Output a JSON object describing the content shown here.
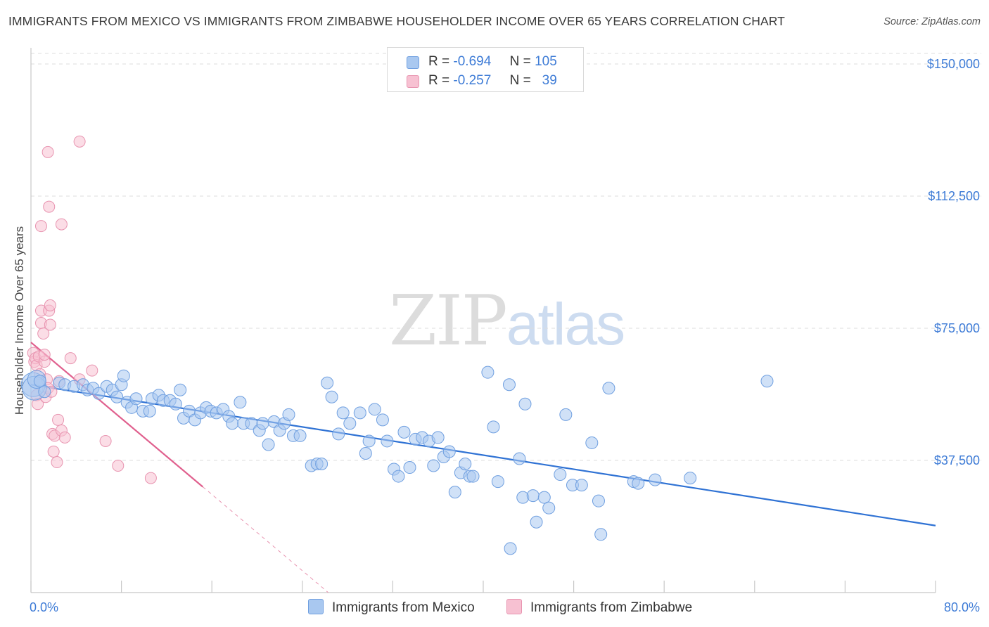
{
  "title": "IMMIGRANTS FROM MEXICO VS IMMIGRANTS FROM ZIMBABWE HOUSEHOLDER INCOME OVER 65 YEARS CORRELATION CHART",
  "source": "Source: ZipAtlas.com",
  "watermark": {
    "zip": "ZIP",
    "atlas": "atlas"
  },
  "legend": {
    "rows": [
      {
        "r_label": "R =",
        "r_value": "-0.694",
        "n_label": "N =",
        "n_value": "105",
        "color": "#a9c8f0"
      },
      {
        "r_label": "R =",
        "r_value": "-0.257",
        "n_label": "N =",
        "n_value": "39",
        "color": "#f5b5c9"
      }
    ]
  },
  "bottom_legend": [
    {
      "label": "Immigrants from Mexico",
      "color": "#a9c8f0"
    },
    {
      "label": "Immigrants from Zimbabwe",
      "color": "#f5b5c9"
    }
  ],
  "colors": {
    "mexico_fill": "#a9c8f0",
    "mexico_stroke": "#6f9fe0",
    "mexico_line": "#2f72d4",
    "zimbabwe_fill": "#f7c1d2",
    "zimbabwe_stroke": "#e894b0",
    "zimbabwe_line": "#e0608e",
    "tick_text": "#3d7bd6",
    "grid": "#dcdcdc"
  },
  "chart_data": {
    "type": "scatter",
    "title": "IMMIGRANTS FROM MEXICO VS IMMIGRANTS FROM ZIMBABWE HOUSEHOLDER INCOME OVER 65 YEARS CORRELATION CHART",
    "xlabel": "",
    "ylabel": "Householder Income Over 65 years",
    "xlim": [
      0,
      80
    ],
    "ylim": [
      0,
      153000
    ],
    "x_tick_labels": [
      "0.0%",
      "80.0%"
    ],
    "y_ticks": [
      37500,
      75000,
      112500,
      150000
    ],
    "y_tick_labels": [
      "$37,500",
      "$75,000",
      "$112,500",
      "$150,000"
    ],
    "grid": true,
    "legend_position": "top-center",
    "series": [
      {
        "name": "Immigrants from Mexico",
        "r": -0.694,
        "n": 105,
        "trend": {
          "x": [
            0,
            80
          ],
          "y": [
            59000,
            19000
          ]
        },
        "points": [
          [
            0.2,
            59000,
            2
          ],
          [
            0.3,
            58000,
            2
          ],
          [
            0.5,
            60500,
            1.5
          ],
          [
            0.8,
            60000,
            1
          ],
          [
            1.2,
            57000,
            1
          ],
          [
            2.5,
            59500,
            1
          ],
          [
            3,
            59000,
            1
          ],
          [
            3.8,
            58500,
            1
          ],
          [
            4.6,
            59000,
            1
          ],
          [
            5,
            57500,
            1
          ],
          [
            5.5,
            58000,
            1
          ],
          [
            6,
            56500,
            1
          ],
          [
            6.7,
            58500,
            1
          ],
          [
            7.2,
            57500,
            1
          ],
          [
            7.6,
            55500,
            1
          ],
          [
            8,
            59000,
            1
          ],
          [
            8.2,
            61500,
            1
          ],
          [
            8.5,
            54000,
            1
          ],
          [
            8.9,
            52500,
            1
          ],
          [
            9.3,
            55000,
            1
          ],
          [
            9.9,
            51500,
            1
          ],
          [
            10.5,
            51500,
            1
          ],
          [
            10.7,
            55000,
            1
          ],
          [
            11.3,
            56000,
            1
          ],
          [
            11.7,
            54500,
            1
          ],
          [
            12.3,
            54500,
            1
          ],
          [
            12.8,
            53500,
            1
          ],
          [
            13.2,
            57500,
            1
          ],
          [
            13.5,
            49500,
            1
          ],
          [
            14,
            51500,
            1
          ],
          [
            14.5,
            49000,
            1
          ],
          [
            15,
            51000,
            1
          ],
          [
            15.5,
            52500,
            1
          ],
          [
            15.9,
            51500,
            1
          ],
          [
            16.4,
            51000,
            1
          ],
          [
            17,
            52000,
            1
          ],
          [
            17.5,
            50000,
            1
          ],
          [
            17.8,
            48000,
            1
          ],
          [
            18.5,
            54000,
            1
          ],
          [
            18.8,
            48000,
            1
          ],
          [
            19.5,
            48000,
            1
          ],
          [
            20.2,
            46000,
            1
          ],
          [
            20.5,
            48000,
            1
          ],
          [
            21,
            42000,
            1
          ],
          [
            21.5,
            48500,
            1
          ],
          [
            22,
            46000,
            1
          ],
          [
            22.4,
            48000,
            1
          ],
          [
            22.8,
            50500,
            1
          ],
          [
            23.2,
            44500,
            1
          ],
          [
            23.8,
            44500,
            1
          ],
          [
            24.8,
            36000,
            1
          ],
          [
            25.3,
            36500,
            1
          ],
          [
            25.7,
            36500,
            1
          ],
          [
            26.2,
            59500,
            1
          ],
          [
            26.6,
            55500,
            1
          ],
          [
            27.2,
            45000,
            1
          ],
          [
            27.6,
            51000,
            1
          ],
          [
            28.2,
            48000,
            1
          ],
          [
            29.1,
            51000,
            1
          ],
          [
            29.6,
            39500,
            1
          ],
          [
            29.9,
            43000,
            1
          ],
          [
            30.4,
            52000,
            1
          ],
          [
            31.1,
            49000,
            1
          ],
          [
            31.5,
            43000,
            1
          ],
          [
            32.1,
            35000,
            1
          ],
          [
            32.5,
            33000,
            1
          ],
          [
            33,
            45500,
            1
          ],
          [
            33.5,
            35500,
            1
          ],
          [
            34,
            43500,
            1
          ],
          [
            34.6,
            44000,
            1
          ],
          [
            35.2,
            43000,
            1
          ],
          [
            35.6,
            36000,
            1
          ],
          [
            36,
            44000,
            1
          ],
          [
            36.5,
            38500,
            1
          ],
          [
            37,
            40000,
            1
          ],
          [
            37.5,
            28500,
            1
          ],
          [
            38,
            34000,
            1
          ],
          [
            38.4,
            36500,
            1
          ],
          [
            38.8,
            33000,
            1
          ],
          [
            39.1,
            33000,
            1
          ],
          [
            40.4,
            62500,
            1
          ],
          [
            40.9,
            47000,
            1
          ],
          [
            41.3,
            31500,
            1
          ],
          [
            42.3,
            59000,
            1
          ],
          [
            43.2,
            38000,
            1
          ],
          [
            43.5,
            27000,
            1
          ],
          [
            43.7,
            53500,
            1
          ],
          [
            44.4,
            27500,
            1
          ],
          [
            44.7,
            20000,
            1
          ],
          [
            45.4,
            27000,
            1
          ],
          [
            45.8,
            24000,
            1
          ],
          [
            46.8,
            33500,
            1
          ],
          [
            47.3,
            50500,
            1
          ],
          [
            47.9,
            30500,
            1
          ],
          [
            48.7,
            30500,
            1
          ],
          [
            49.6,
            42500,
            1
          ],
          [
            50.2,
            26000,
            1
          ],
          [
            50.4,
            16500,
            1
          ],
          [
            51.1,
            58000,
            1
          ],
          [
            53.3,
            31500,
            1
          ],
          [
            53.7,
            31000,
            1
          ],
          [
            55.2,
            32000,
            1
          ],
          [
            58.3,
            32500,
            1
          ],
          [
            65.1,
            60000,
            1
          ],
          [
            42.4,
            12500,
            1
          ]
        ]
      },
      {
        "name": "Immigrants from Zimbabwe",
        "r": -0.257,
        "n": 39,
        "trend": {
          "x": [
            0,
            15.2
          ],
          "y": [
            71000,
            30000
          ]
        },
        "trend_extension": {
          "x": [
            15.2,
            30
          ],
          "y": [
            30000,
            -10000
          ]
        },
        "points": [
          [
            0.2,
            68000,
            1
          ],
          [
            0.3,
            65500,
            1
          ],
          [
            0.4,
            66500,
            1
          ],
          [
            0.5,
            64500,
            1
          ],
          [
            0.5,
            56000,
            1
          ],
          [
            0.6,
            53500,
            1
          ],
          [
            0.7,
            67000,
            1
          ],
          [
            0.8,
            62000,
            1
          ],
          [
            0.9,
            76500,
            1
          ],
          [
            0.9,
            80000,
            1
          ],
          [
            1.1,
            73500,
            1
          ],
          [
            1.2,
            65500,
            1
          ],
          [
            1.2,
            67500,
            1
          ],
          [
            1.3,
            55500,
            1
          ],
          [
            1.4,
            60500,
            1
          ],
          [
            1.5,
            58000,
            1
          ],
          [
            1.6,
            80000,
            1
          ],
          [
            1.7,
            81500,
            1
          ],
          [
            1.7,
            76000,
            1
          ],
          [
            1.8,
            57000,
            1
          ],
          [
            1.9,
            45000,
            1
          ],
          [
            2,
            40000,
            1
          ],
          [
            2.1,
            44500,
            1
          ],
          [
            2.3,
            37000,
            1
          ],
          [
            2.4,
            49000,
            1
          ],
          [
            2.5,
            60000,
            1
          ],
          [
            2.7,
            46000,
            1
          ],
          [
            3,
            44000,
            1
          ],
          [
            3.5,
            66500,
            1
          ],
          [
            4.3,
            60500,
            1
          ],
          [
            1.5,
            125000,
            1
          ],
          [
            4.3,
            128000,
            1
          ],
          [
            1.6,
            109500,
            1
          ],
          [
            0.9,
            104000,
            1
          ],
          [
            2.7,
            104500,
            1
          ],
          [
            5.4,
            63000,
            1
          ],
          [
            6.6,
            43000,
            1
          ],
          [
            7.7,
            36000,
            1
          ],
          [
            10.6,
            32500,
            1
          ]
        ]
      }
    ]
  }
}
